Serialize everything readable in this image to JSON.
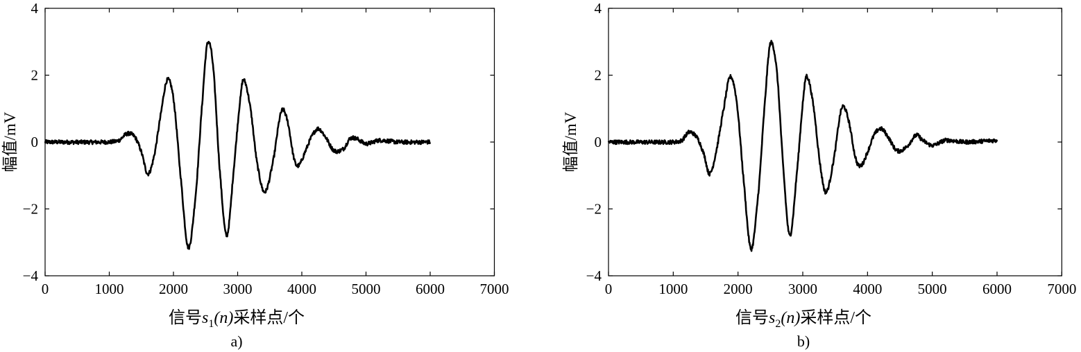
{
  "chart_data": [
    {
      "type": "line",
      "panel_label": "a)",
      "xlabel": "信号s1(n)采样点/个",
      "xlabel_parts": {
        "prefix": "信号",
        "var": "s",
        "sub": "1",
        "arg": "(n)",
        "suffix": "采样点/个"
      },
      "ylabel": "幅值/mV",
      "xlim": [
        0,
        7000
      ],
      "ylim": [
        -4,
        4
      ],
      "xticks": [
        "0",
        "1000",
        "2000",
        "3000",
        "4000",
        "5000",
        "6000",
        "7000"
      ],
      "yticks": [
        "4",
        "2",
        "0",
        "−2",
        "−4"
      ],
      "grid": false,
      "legend": "none",
      "line_color": "#000000",
      "series": [
        {
          "x": [
            0,
            1000,
            1150,
            1280,
            1400,
            1500,
            1600,
            1700,
            1800,
            1900,
            2000,
            2100,
            2230,
            2350,
            2450,
            2530,
            2620,
            2720,
            2830,
            2950,
            3050,
            3100,
            3200,
            3300,
            3420,
            3550,
            3680,
            3780,
            3880,
            3950,
            4050,
            4150,
            4250,
            4350,
            4500,
            4650,
            4750,
            4850,
            5000,
            5200,
            5500,
            6000
          ],
          "y": [
            0,
            0,
            0.05,
            0.25,
            0.15,
            -0.3,
            -0.95,
            -0.4,
            0.8,
            1.85,
            1.3,
            -0.8,
            -3.15,
            -1.5,
            1.2,
            2.95,
            2.2,
            -0.8,
            -2.8,
            -0.6,
            1.4,
            1.85,
            1.0,
            -0.6,
            -1.5,
            -0.6,
            0.9,
            0.6,
            -0.5,
            -0.7,
            -0.3,
            0.15,
            0.4,
            0.2,
            -0.25,
            -0.2,
            0.1,
            0.1,
            -0.05,
            0.05,
            0,
            0
          ]
        }
      ]
    },
    {
      "type": "line",
      "panel_label": "b)",
      "xlabel": "信号s2(n)采样点/个",
      "xlabel_parts": {
        "prefix": "信号",
        "var": "s",
        "sub": "2",
        "arg": "(n)",
        "suffix": "采样点/个"
      },
      "ylabel": "幅值/mV",
      "xlim": [
        0,
        7000
      ],
      "ylim": [
        -4,
        4
      ],
      "xticks": [
        "0",
        "1000",
        "2000",
        "3000",
        "4000",
        "5000",
        "6000",
        "7000"
      ],
      "yticks": [
        "4",
        "2",
        "0",
        "−2",
        "−4"
      ],
      "grid": false,
      "legend": "none",
      "line_color": "#000000",
      "series": [
        {
          "x": [
            0,
            1000,
            1130,
            1250,
            1380,
            1480,
            1560,
            1660,
            1780,
            1880,
            1980,
            2080,
            2200,
            2320,
            2420,
            2500,
            2600,
            2700,
            2800,
            2920,
            3020,
            3070,
            3170,
            3270,
            3360,
            3480,
            3600,
            3700,
            3820,
            3900,
            4000,
            4100,
            4200,
            4300,
            4450,
            4600,
            4750,
            4850,
            5000,
            5200,
            5500,
            6000
          ],
          "y": [
            0,
            0,
            0.05,
            0.3,
            0.1,
            -0.4,
            -0.95,
            -0.3,
            1.0,
            1.95,
            1.2,
            -1.0,
            -3.2,
            -1.4,
            1.3,
            2.95,
            2.1,
            -0.8,
            -2.8,
            -0.7,
            1.5,
            1.95,
            1.0,
            -0.7,
            -1.5,
            -0.5,
            1.0,
            0.7,
            -0.5,
            -0.7,
            -0.3,
            0.2,
            0.4,
            0.2,
            -0.25,
            -0.15,
            0.2,
            0.05,
            -0.1,
            0.05,
            0,
            0.05
          ]
        }
      ]
    }
  ]
}
